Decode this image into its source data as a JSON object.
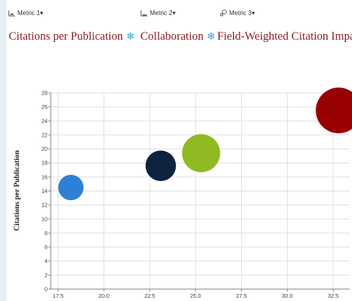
{
  "toolbar": {
    "metric1_label": "Metric 1▾",
    "metric2_label": "Metric 2▾",
    "metric3_label": "Metric 3▾"
  },
  "titles": {
    "metric1": "Citations per Publication",
    "metric2": "Collaboration",
    "metric3": "Field-Weighted Citation Impact"
  },
  "icons": {
    "metric1": "bar-chart-icon",
    "metric2": "column-chart-icon",
    "metric3": "bubble-chart-icon",
    "settings": "snowflake-icon"
  },
  "colors": {
    "title": "#8b1a1a",
    "snowflake": "#3aa3d8",
    "background": "#e3f1f3"
  },
  "chart_data": {
    "type": "scatter",
    "ylabel": "Citations per Publication",
    "xlabel": "",
    "xlim": [
      17.1,
      33.4
    ],
    "ylim": [
      0,
      28
    ],
    "x_ticks": [
      17.5,
      20.0,
      22.5,
      25.0,
      27.5,
      30.0,
      32.5
    ],
    "y_ticks": [
      0,
      2,
      4,
      6,
      8,
      10,
      12,
      14,
      16,
      18,
      20,
      22,
      24,
      26,
      28
    ],
    "grid": true,
    "points": [
      {
        "x": 18.2,
        "y": 14.5,
        "size": 1.0,
        "color": "#2e7fd6"
      },
      {
        "x": 23.1,
        "y": 17.6,
        "size": 1.2,
        "color": "#0d2340"
      },
      {
        "x": 25.3,
        "y": 19.4,
        "size": 1.5,
        "color": "#8fba23"
      },
      {
        "x": 32.8,
        "y": 25.5,
        "size": 1.8,
        "color": "#990000"
      }
    ]
  }
}
